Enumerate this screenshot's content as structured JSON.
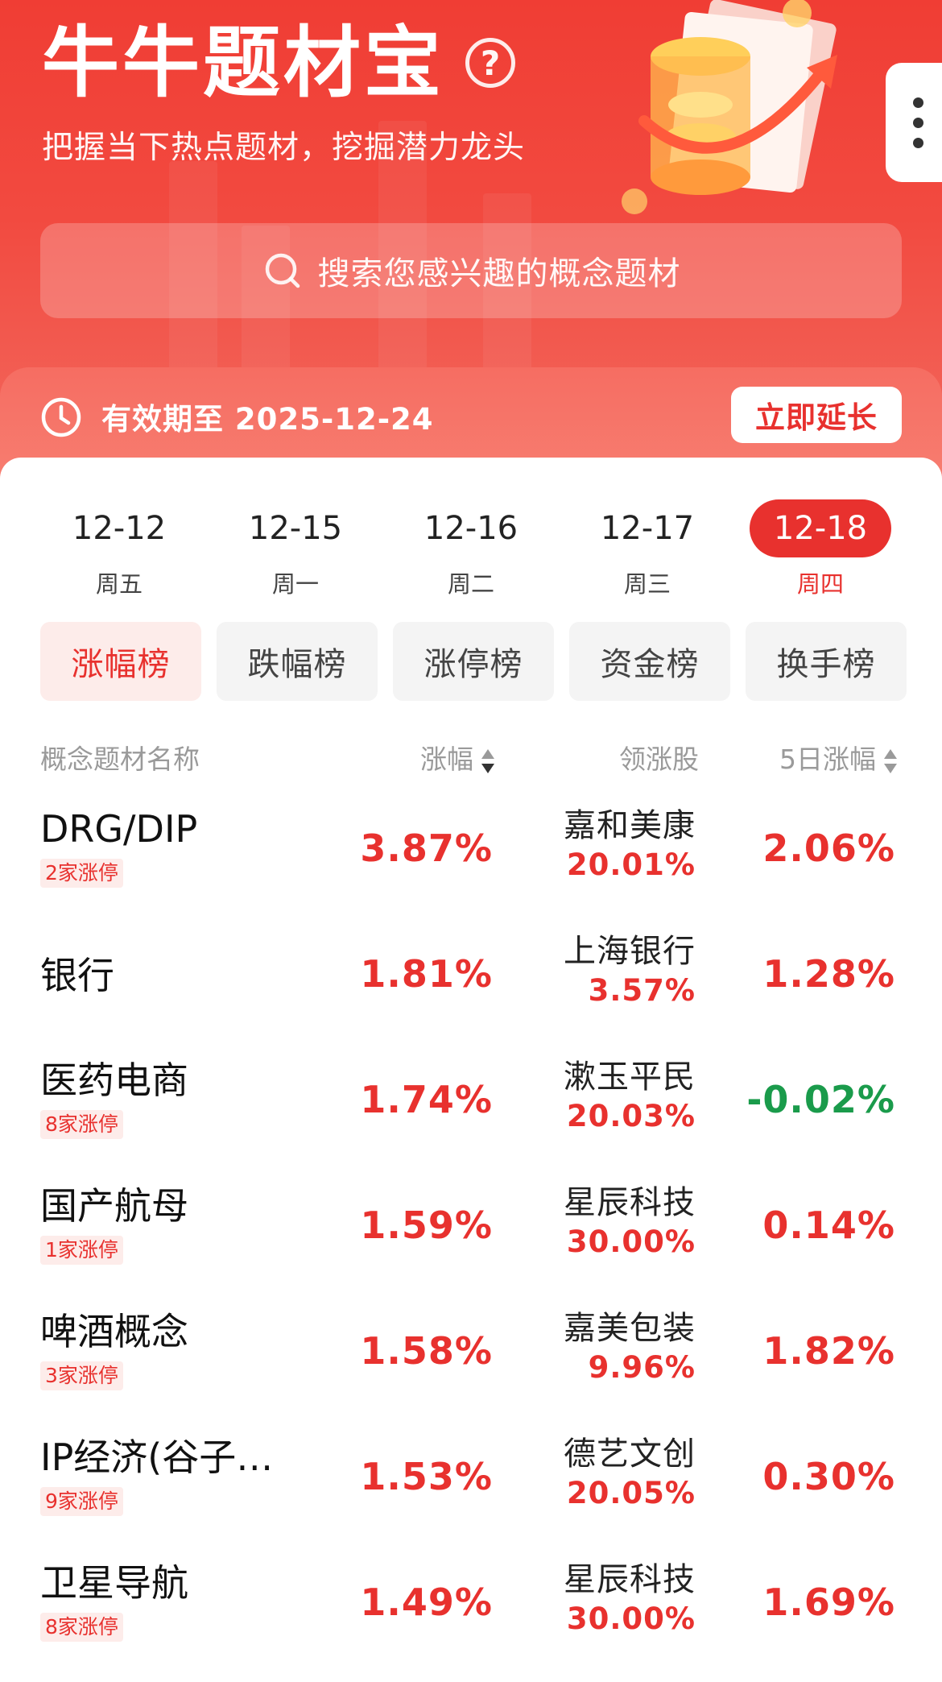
{
  "header": {
    "title": "牛牛题材宝",
    "help_icon": "question-circle-icon",
    "subtitle": "把握当下热点题材，挖掘潜力龙头",
    "search_placeholder": "搜索您感兴趣的概念题材",
    "validity_text": "有效期至 2025-12-24",
    "extend_label": "立即延长",
    "colors": {
      "brand_red": "#e8312e",
      "hero_red": "#f03d34",
      "down_green": "#1a9b4b"
    }
  },
  "date_tabs": [
    {
      "date": "12-12",
      "weekday": "周五",
      "active": false
    },
    {
      "date": "12-15",
      "weekday": "周一",
      "active": false
    },
    {
      "date": "12-16",
      "weekday": "周二",
      "active": false
    },
    {
      "date": "12-17",
      "weekday": "周三",
      "active": false
    },
    {
      "date": "12-18",
      "weekday": "周四",
      "active": true
    }
  ],
  "rank_tabs": [
    {
      "label": "涨幅榜",
      "active": true
    },
    {
      "label": "跌幅榜",
      "active": false
    },
    {
      "label": "涨停榜",
      "active": false
    },
    {
      "label": "资金榜",
      "active": false
    },
    {
      "label": "换手榜",
      "active": false
    }
  ],
  "table": {
    "headers": {
      "name": "概念题材名称",
      "change": "涨幅",
      "leader": "领涨股",
      "five_day": "5日涨幅"
    },
    "rows": [
      {
        "name": "DRG/DIP",
        "badge": "2家涨停",
        "change": "3.87%",
        "leader": "嘉和美康",
        "leader_change": "20.01%",
        "five_day": "2.06%"
      },
      {
        "name": "银行",
        "badge": "",
        "change": "1.81%",
        "leader": "上海银行",
        "leader_change": "3.57%",
        "five_day": "1.28%"
      },
      {
        "name": "医药电商",
        "badge": "8家涨停",
        "change": "1.74%",
        "leader": "漱玉平民",
        "leader_change": "20.03%",
        "five_day": "-0.02%"
      },
      {
        "name": "国产航母",
        "badge": "1家涨停",
        "change": "1.59%",
        "leader": "星辰科技",
        "leader_change": "30.00%",
        "five_day": "0.14%"
      },
      {
        "name": "啤酒概念",
        "badge": "3家涨停",
        "change": "1.58%",
        "leader": "嘉美包装",
        "leader_change": "9.96%",
        "five_day": "1.82%"
      },
      {
        "name": "IP经济(谷子…",
        "badge": "9家涨停",
        "change": "1.53%",
        "leader": "德艺文创",
        "leader_change": "20.05%",
        "five_day": "0.30%"
      },
      {
        "name": "卫星导航",
        "badge": "8家涨停",
        "change": "1.49%",
        "leader": "星辰科技",
        "leader_change": "30.00%",
        "five_day": "1.69%"
      }
    ]
  }
}
